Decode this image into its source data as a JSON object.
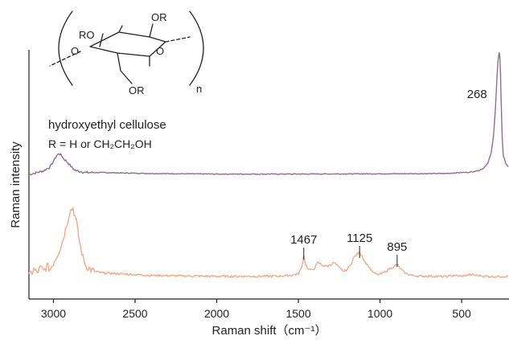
{
  "chart_data": {
    "type": "line",
    "xlabel": "Raman shift（cm⁻¹）",
    "ylabel": "Raman intensity",
    "xlim": [
      3150,
      210
    ],
    "x_reversed": true,
    "xticks": [
      3000,
      2500,
      2000,
      1500,
      1000,
      500
    ],
    "yticks": [],
    "grid": false,
    "series": [
      {
        "color": "#8e6d95",
        "x": [
          3150,
          3100,
          3060,
          3020,
          3000,
          2980,
          2965,
          2950,
          2935,
          2920,
          2900,
          2880,
          2860,
          2830,
          2800,
          2700,
          2600,
          2400,
          2000,
          1600,
          1200,
          800,
          600,
          500,
          450,
          400,
          370,
          340,
          320,
          305,
          295,
          288,
          282,
          276,
          270,
          266,
          262,
          258,
          252,
          245,
          230,
          215
        ],
        "y": [
          0.36,
          0.37,
          0.38,
          0.4,
          0.43,
          0.46,
          0.47,
          0.46,
          0.44,
          0.43,
          0.41,
          0.39,
          0.38,
          0.375,
          0.37,
          0.37,
          0.368,
          0.365,
          0.362,
          0.362,
          0.363,
          0.364,
          0.365,
          0.37,
          0.372,
          0.38,
          0.39,
          0.42,
          0.47,
          0.56,
          0.68,
          0.8,
          0.9,
          0.97,
          1.0,
          0.98,
          0.9,
          0.74,
          0.56,
          0.46,
          0.42,
          0.4
        ]
      },
      {
        "color": "#f3a98a",
        "x": [
          3150,
          3120,
          3100,
          3080,
          3060,
          3040,
          3020,
          3000,
          2980,
          2960,
          2940,
          2920,
          2900,
          2880,
          2860,
          2840,
          2820,
          2800,
          2760,
          2700,
          2600,
          2400,
          2000,
          1700,
          1600,
          1540,
          1500,
          1480,
          1467,
          1455,
          1440,
          1420,
          1400,
          1380,
          1360,
          1340,
          1320,
          1300,
          1280,
          1260,
          1240,
          1220,
          1200,
          1180,
          1160,
          1140,
          1125,
          1110,
          1090,
          1070,
          1050,
          1030,
          1010,
          990,
          970,
          950,
          930,
          910,
          895,
          880,
          860,
          840,
          800,
          750,
          700,
          650,
          600,
          550,
          500,
          450,
          400,
          350,
          300,
          250,
          215
        ],
        "y": [
          0.02,
          0.06,
          0.04,
          0.07,
          0.05,
          0.08,
          0.06,
          0.1,
          0.14,
          0.18,
          0.24,
          0.32,
          0.4,
          0.42,
          0.34,
          0.22,
          0.13,
          0.08,
          0.05,
          0.04,
          0.035,
          0.025,
          0.02,
          0.02,
          0.022,
          0.026,
          0.035,
          0.07,
          0.14,
          0.09,
          0.06,
          0.055,
          0.07,
          0.1,
          0.09,
          0.08,
          0.08,
          0.09,
          0.1,
          0.08,
          0.06,
          0.05,
          0.06,
          0.09,
          0.13,
          0.15,
          0.16,
          0.14,
          0.1,
          0.08,
          0.05,
          0.035,
          0.03,
          0.035,
          0.045,
          0.06,
          0.07,
          0.08,
          0.09,
          0.07,
          0.05,
          0.035,
          0.025,
          0.02,
          0.022,
          0.02,
          0.018,
          0.025,
          0.02,
          0.03,
          0.025,
          0.02,
          0.018,
          0.02,
          0.02
        ]
      }
    ],
    "annotations": [
      {
        "text": "268",
        "x": 268,
        "series": 0
      },
      {
        "text": "1467",
        "x": 1467,
        "series": 1
      },
      {
        "text": "1125",
        "x": 1125,
        "series": 1
      },
      {
        "text": "895",
        "x": 895,
        "series": 1
      }
    ],
    "inset": {
      "name": "hydroxyethyl cellulose",
      "definition": "R = H or CH₂CH₂OH",
      "labels": [
        "OR",
        "RO",
        "O",
        "O",
        "OR",
        "n"
      ]
    }
  }
}
